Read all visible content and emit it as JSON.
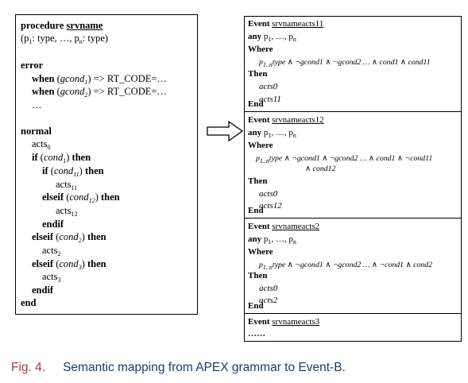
{
  "left": {
    "procedure_kw": "procedure",
    "procedure_name": "srvname",
    "params_open": "(p",
    "params_s1": "1",
    "params_mid": ": type, …, p",
    "params_sn": "n",
    "params_end": ": type)",
    "error_kw": "error",
    "when_kw": "when",
    "gcond": "gcond",
    "g_sub1": "1",
    "g_sub2": "2",
    "rt_code": ") => RT_CODE=…",
    "ellipsis": "…",
    "normal_kw": "normal",
    "acts": "acts",
    "acts_sub0": "0",
    "if_kw": "if",
    "then_kw": "then",
    "elseif_kw": "elseif",
    "endif_kw": "endif",
    "end_kw": "end",
    "cond": "cond",
    "c_sub1": "1",
    "c_sub11": "11",
    "c_sub12": "12",
    "c_sub2": "2",
    "c_sub3": "3",
    "open_paren": "(",
    "close_paren": ")"
  },
  "events": [
    {
      "event_kw": "Event",
      "name": "srvnameacts11",
      "any_kw": "any",
      "any_p": "p",
      "any_s1": "1",
      "any_mid": ", …, p",
      "any_sn": "n",
      "where_kw": "Where",
      "guard_sub": "1..n",
      "guard_text": "type ∧ ¬gcond1 ∧ ¬gcond2 … ∧ cond1 ∧ cond11",
      "then_kw": "Then",
      "act1": "acts0",
      "act2": "acts11",
      "end_kw": "End"
    },
    {
      "event_kw": "Event",
      "name": "srvnameacts12",
      "any_kw": "any",
      "any_p": "p",
      "any_s1": "1",
      "any_mid": ", …, p",
      "any_sn": "n",
      "where_kw": "Where",
      "guard_sub": "1..n",
      "guard_text": "type ∧ ¬gcond1 ∧ ¬gcond2 … ∧ cond1 ∧ ¬cond11",
      "guard_text2": "∧ cond12",
      "then_kw": "Then",
      "act1": "acts0",
      "act2": "acts12",
      "end_kw": "End"
    },
    {
      "event_kw": "Event",
      "name": "srvnameacts2",
      "any_kw": "any",
      "any_p": "p",
      "any_s1": "1",
      "any_mid": ", …, p",
      "any_sn": "n",
      "where_kw": "Where",
      "guard_sub": "1..n",
      "guard_text": "type ∧ ¬gcond1 ∧ ¬gcond2 … ∧ ¬cond1 ∧ cond2",
      "then_kw": "Then",
      "act1": "acts0",
      "act2": "acts2",
      "end_kw": "End"
    },
    {
      "event_kw": "Event",
      "name": "srvnameacts3",
      "dots": "……"
    }
  ],
  "caption": {
    "number": "Fig. 4.",
    "text": "Semantic mapping from APEX grammar to Event-B."
  }
}
